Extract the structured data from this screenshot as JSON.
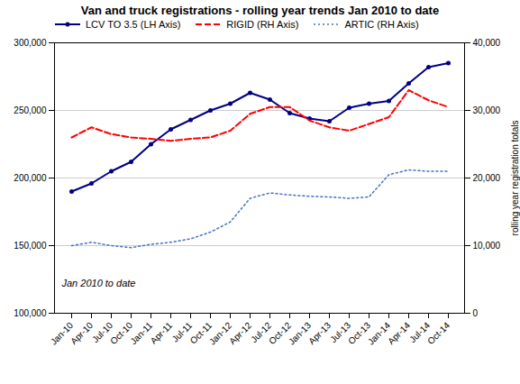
{
  "chart_data": {
    "type": "line",
    "title": "Van and truck registrations - rolling year trends Jan 2010 to date",
    "categories": [
      "Jan-10",
      "Apr-10",
      "Jul-10",
      "Oct-10",
      "Jan-11",
      "Apr-11",
      "Jul-11",
      "Oct-11",
      "Jan-12",
      "Apr-12",
      "Jul-12",
      "Oct-12",
      "Jan-13",
      "Apr-13",
      "Jul-13",
      "Oct-13",
      "Jan-14",
      "Apr-14",
      "Jul-14",
      "Oct-14"
    ],
    "series": [
      {
        "name": "LCV TO 3.5 (LH Axis)",
        "color": "#000080",
        "line_style": "solid",
        "marker": "circle",
        "values": [
          190000,
          196000,
          205000,
          212000,
          225000,
          236000,
          243000,
          250000,
          255000,
          263000,
          258000,
          248000,
          244000,
          242000,
          252000,
          255000,
          257000,
          270000,
          282000,
          285000
        ]
      },
      {
        "name": "RIGID (RH Axis)",
        "color": "#FF0000",
        "line_style": "dashed",
        "axis": "y2",
        "values": [
          26000,
          27500,
          26500,
          26000,
          25800,
          25500,
          25800,
          26000,
          27000,
          29500,
          30500,
          30500,
          28500,
          27500,
          27000,
          28000,
          29000,
          33000,
          31500,
          30500
        ]
      },
      {
        "name": "ARTIC (RH Axis)",
        "color": "#4472C4",
        "line_style": "dotted",
        "axis": "y2",
        "values": [
          10000,
          10500,
          10000,
          9700,
          10200,
          10500,
          11000,
          12000,
          13500,
          17000,
          17800,
          17500,
          17300,
          17200,
          17000,
          17200,
          20500,
          21200,
          21000,
          21000
        ]
      }
    ],
    "ylim": [
      100000,
      300000
    ],
    "yticks": [
      {
        "value": 100000,
        "label": "100,000"
      },
      {
        "value": 150000,
        "label": "150,000"
      },
      {
        "value": 200000,
        "label": "200,000"
      },
      {
        "value": 250000,
        "label": "250,000"
      },
      {
        "value": 300000,
        "label": "300,000"
      }
    ],
    "y2lim": [
      0,
      40000
    ],
    "y2ticks": [
      0,
      {
        "value": 10000,
        "label": "10,000"
      },
      {
        "value": 20000,
        "label": "20,000"
      },
      {
        "value": 30000,
        "label": "30,000"
      },
      {
        "value": 40000,
        "label": "40,000"
      }
    ],
    "y2label": "rolling year registration totals",
    "annotation": "Jan 2010 to date",
    "grid": true,
    "legend": "upper left"
  }
}
